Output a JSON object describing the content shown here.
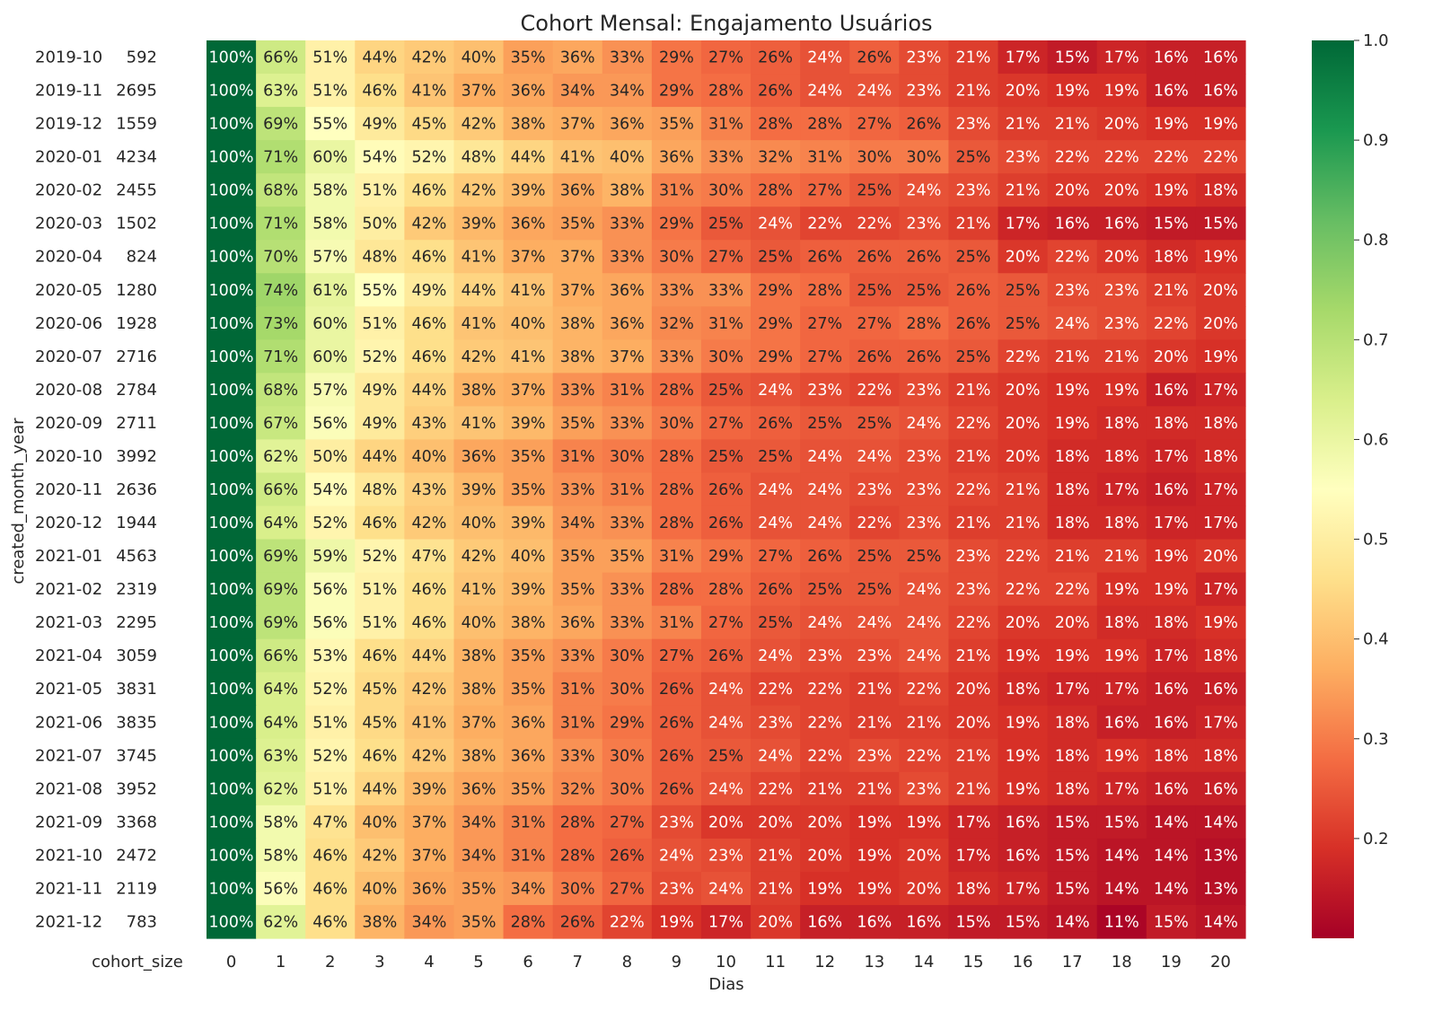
{
  "chart_data": {
    "type": "heatmap",
    "title": "Cohort Mensal: Engajamento Usuários",
    "xlabel": "Dias",
    "ylabel": "created_month_year",
    "size_header": "cohort_size",
    "colormap": "RdYlGn",
    "colormap_stops": [
      "#a50026",
      "#d73027",
      "#f46d43",
      "#fdae61",
      "#fee08b",
      "#ffffbf",
      "#d9ef8b",
      "#a6d96a",
      "#66bd63",
      "#1a9850",
      "#006837"
    ],
    "color_range": [
      0.1,
      1.0
    ],
    "colorbar_ticks": [
      "0.2",
      "0.3",
      "0.4",
      "0.5",
      "0.6",
      "0.7",
      "0.8",
      "0.9",
      "1.0"
    ],
    "x_labels": [
      "0",
      "1",
      "2",
      "3",
      "4",
      "5",
      "6",
      "7",
      "8",
      "9",
      "10",
      "11",
      "12",
      "13",
      "14",
      "15",
      "16",
      "17",
      "18",
      "19",
      "20"
    ],
    "rows": [
      {
        "cohort": "2019-10",
        "size": "592",
        "values": [
          100,
          66,
          51,
          44,
          42,
          40,
          35,
          36,
          33,
          29,
          27,
          26,
          24,
          26,
          23,
          21,
          17,
          15,
          17,
          16,
          16
        ]
      },
      {
        "cohort": "2019-11",
        "size": "2695",
        "values": [
          100,
          63,
          51,
          46,
          41,
          37,
          36,
          34,
          34,
          29,
          28,
          26,
          24,
          24,
          23,
          21,
          20,
          19,
          19,
          16,
          16
        ]
      },
      {
        "cohort": "2019-12",
        "size": "1559",
        "values": [
          100,
          69,
          55,
          49,
          45,
          42,
          38,
          37,
          36,
          35,
          31,
          28,
          28,
          27,
          26,
          23,
          21,
          21,
          20,
          19,
          19
        ]
      },
      {
        "cohort": "2020-01",
        "size": "4234",
        "values": [
          100,
          71,
          60,
          54,
          52,
          48,
          44,
          41,
          40,
          36,
          33,
          32,
          31,
          30,
          30,
          25,
          23,
          22,
          22,
          22,
          22
        ]
      },
      {
        "cohort": "2020-02",
        "size": "2455",
        "values": [
          100,
          68,
          58,
          51,
          46,
          42,
          39,
          36,
          38,
          31,
          30,
          28,
          27,
          25,
          24,
          23,
          21,
          20,
          20,
          19,
          18
        ]
      },
      {
        "cohort": "2020-03",
        "size": "1502",
        "values": [
          100,
          71,
          58,
          50,
          42,
          39,
          36,
          35,
          33,
          29,
          25,
          24,
          22,
          22,
          23,
          21,
          17,
          16,
          16,
          15,
          15
        ]
      },
      {
        "cohort": "2020-04",
        "size": "824",
        "values": [
          100,
          70,
          57,
          48,
          46,
          41,
          37,
          37,
          33,
          30,
          27,
          25,
          26,
          26,
          26,
          25,
          20,
          22,
          20,
          18,
          19
        ]
      },
      {
        "cohort": "2020-05",
        "size": "1280",
        "values": [
          100,
          74,
          61,
          55,
          49,
          44,
          41,
          37,
          36,
          33,
          33,
          29,
          28,
          25,
          25,
          26,
          25,
          23,
          23,
          21,
          20
        ]
      },
      {
        "cohort": "2020-06",
        "size": "1928",
        "values": [
          100,
          73,
          60,
          51,
          46,
          41,
          40,
          38,
          36,
          32,
          31,
          29,
          27,
          27,
          28,
          26,
          25,
          24,
          23,
          22,
          20
        ]
      },
      {
        "cohort": "2020-07",
        "size": "2716",
        "values": [
          100,
          71,
          60,
          52,
          46,
          42,
          41,
          38,
          37,
          33,
          30,
          29,
          27,
          26,
          26,
          25,
          22,
          21,
          21,
          20,
          19
        ]
      },
      {
        "cohort": "2020-08",
        "size": "2784",
        "values": [
          100,
          68,
          57,
          49,
          44,
          38,
          37,
          33,
          31,
          28,
          25,
          24,
          23,
          22,
          23,
          21,
          20,
          19,
          19,
          16,
          17
        ]
      },
      {
        "cohort": "2020-09",
        "size": "2711",
        "values": [
          100,
          67,
          56,
          49,
          43,
          41,
          39,
          35,
          33,
          30,
          27,
          26,
          25,
          25,
          24,
          22,
          20,
          19,
          18,
          18,
          18
        ]
      },
      {
        "cohort": "2020-10",
        "size": "3992",
        "values": [
          100,
          62,
          50,
          44,
          40,
          36,
          35,
          31,
          30,
          28,
          25,
          25,
          24,
          24,
          23,
          21,
          20,
          18,
          18,
          17,
          18
        ]
      },
      {
        "cohort": "2020-11",
        "size": "2636",
        "values": [
          100,
          66,
          54,
          48,
          43,
          39,
          35,
          33,
          31,
          28,
          26,
          24,
          24,
          23,
          23,
          22,
          21,
          18,
          17,
          16,
          17
        ]
      },
      {
        "cohort": "2020-12",
        "size": "1944",
        "values": [
          100,
          64,
          52,
          46,
          42,
          40,
          39,
          34,
          33,
          28,
          26,
          24,
          24,
          22,
          23,
          21,
          21,
          18,
          18,
          17,
          17
        ]
      },
      {
        "cohort": "2021-01",
        "size": "4563",
        "values": [
          100,
          69,
          59,
          52,
          47,
          42,
          40,
          35,
          35,
          31,
          29,
          27,
          26,
          25,
          25,
          23,
          22,
          21,
          21,
          19,
          20
        ]
      },
      {
        "cohort": "2021-02",
        "size": "2319",
        "values": [
          100,
          69,
          56,
          51,
          46,
          41,
          39,
          35,
          33,
          28,
          28,
          26,
          25,
          25,
          24,
          23,
          22,
          22,
          19,
          19,
          17
        ]
      },
      {
        "cohort": "2021-03",
        "size": "2295",
        "values": [
          100,
          69,
          56,
          51,
          46,
          40,
          38,
          36,
          33,
          31,
          27,
          25,
          24,
          24,
          24,
          22,
          20,
          20,
          18,
          18,
          19
        ]
      },
      {
        "cohort": "2021-04",
        "size": "3059",
        "values": [
          100,
          66,
          53,
          46,
          44,
          38,
          35,
          33,
          30,
          27,
          26,
          24,
          23,
          23,
          24,
          21,
          19,
          19,
          19,
          17,
          18
        ]
      },
      {
        "cohort": "2021-05",
        "size": "3831",
        "values": [
          100,
          64,
          52,
          45,
          42,
          38,
          35,
          31,
          30,
          26,
          24,
          22,
          22,
          21,
          22,
          20,
          18,
          17,
          17,
          16,
          16
        ]
      },
      {
        "cohort": "2021-06",
        "size": "3835",
        "values": [
          100,
          64,
          51,
          45,
          41,
          37,
          36,
          31,
          29,
          26,
          24,
          23,
          22,
          21,
          21,
          20,
          19,
          18,
          16,
          16,
          17
        ]
      },
      {
        "cohort": "2021-07",
        "size": "3745",
        "values": [
          100,
          63,
          52,
          46,
          42,
          38,
          36,
          33,
          30,
          26,
          25,
          24,
          22,
          23,
          22,
          21,
          19,
          18,
          19,
          18,
          18
        ]
      },
      {
        "cohort": "2021-08",
        "size": "3952",
        "values": [
          100,
          62,
          51,
          44,
          39,
          36,
          35,
          32,
          30,
          26,
          24,
          22,
          21,
          21,
          23,
          21,
          19,
          18,
          17,
          16,
          16
        ]
      },
      {
        "cohort": "2021-09",
        "size": "3368",
        "values": [
          100,
          58,
          47,
          40,
          37,
          34,
          31,
          28,
          27,
          23,
          20,
          20,
          20,
          19,
          19,
          17,
          16,
          15,
          15,
          14,
          14
        ]
      },
      {
        "cohort": "2021-10",
        "size": "2472",
        "values": [
          100,
          58,
          46,
          42,
          37,
          34,
          31,
          28,
          26,
          24,
          23,
          21,
          20,
          19,
          20,
          17,
          16,
          15,
          14,
          14,
          13
        ]
      },
      {
        "cohort": "2021-11",
        "size": "2119",
        "values": [
          100,
          56,
          46,
          40,
          36,
          35,
          34,
          30,
          27,
          23,
          24,
          21,
          19,
          19,
          20,
          18,
          17,
          15,
          14,
          14,
          13
        ]
      },
      {
        "cohort": "2021-12",
        "size": "783",
        "values": [
          100,
          62,
          46,
          38,
          34,
          35,
          28,
          26,
          22,
          19,
          17,
          20,
          16,
          16,
          16,
          15,
          15,
          14,
          11,
          15,
          14
        ]
      }
    ]
  }
}
